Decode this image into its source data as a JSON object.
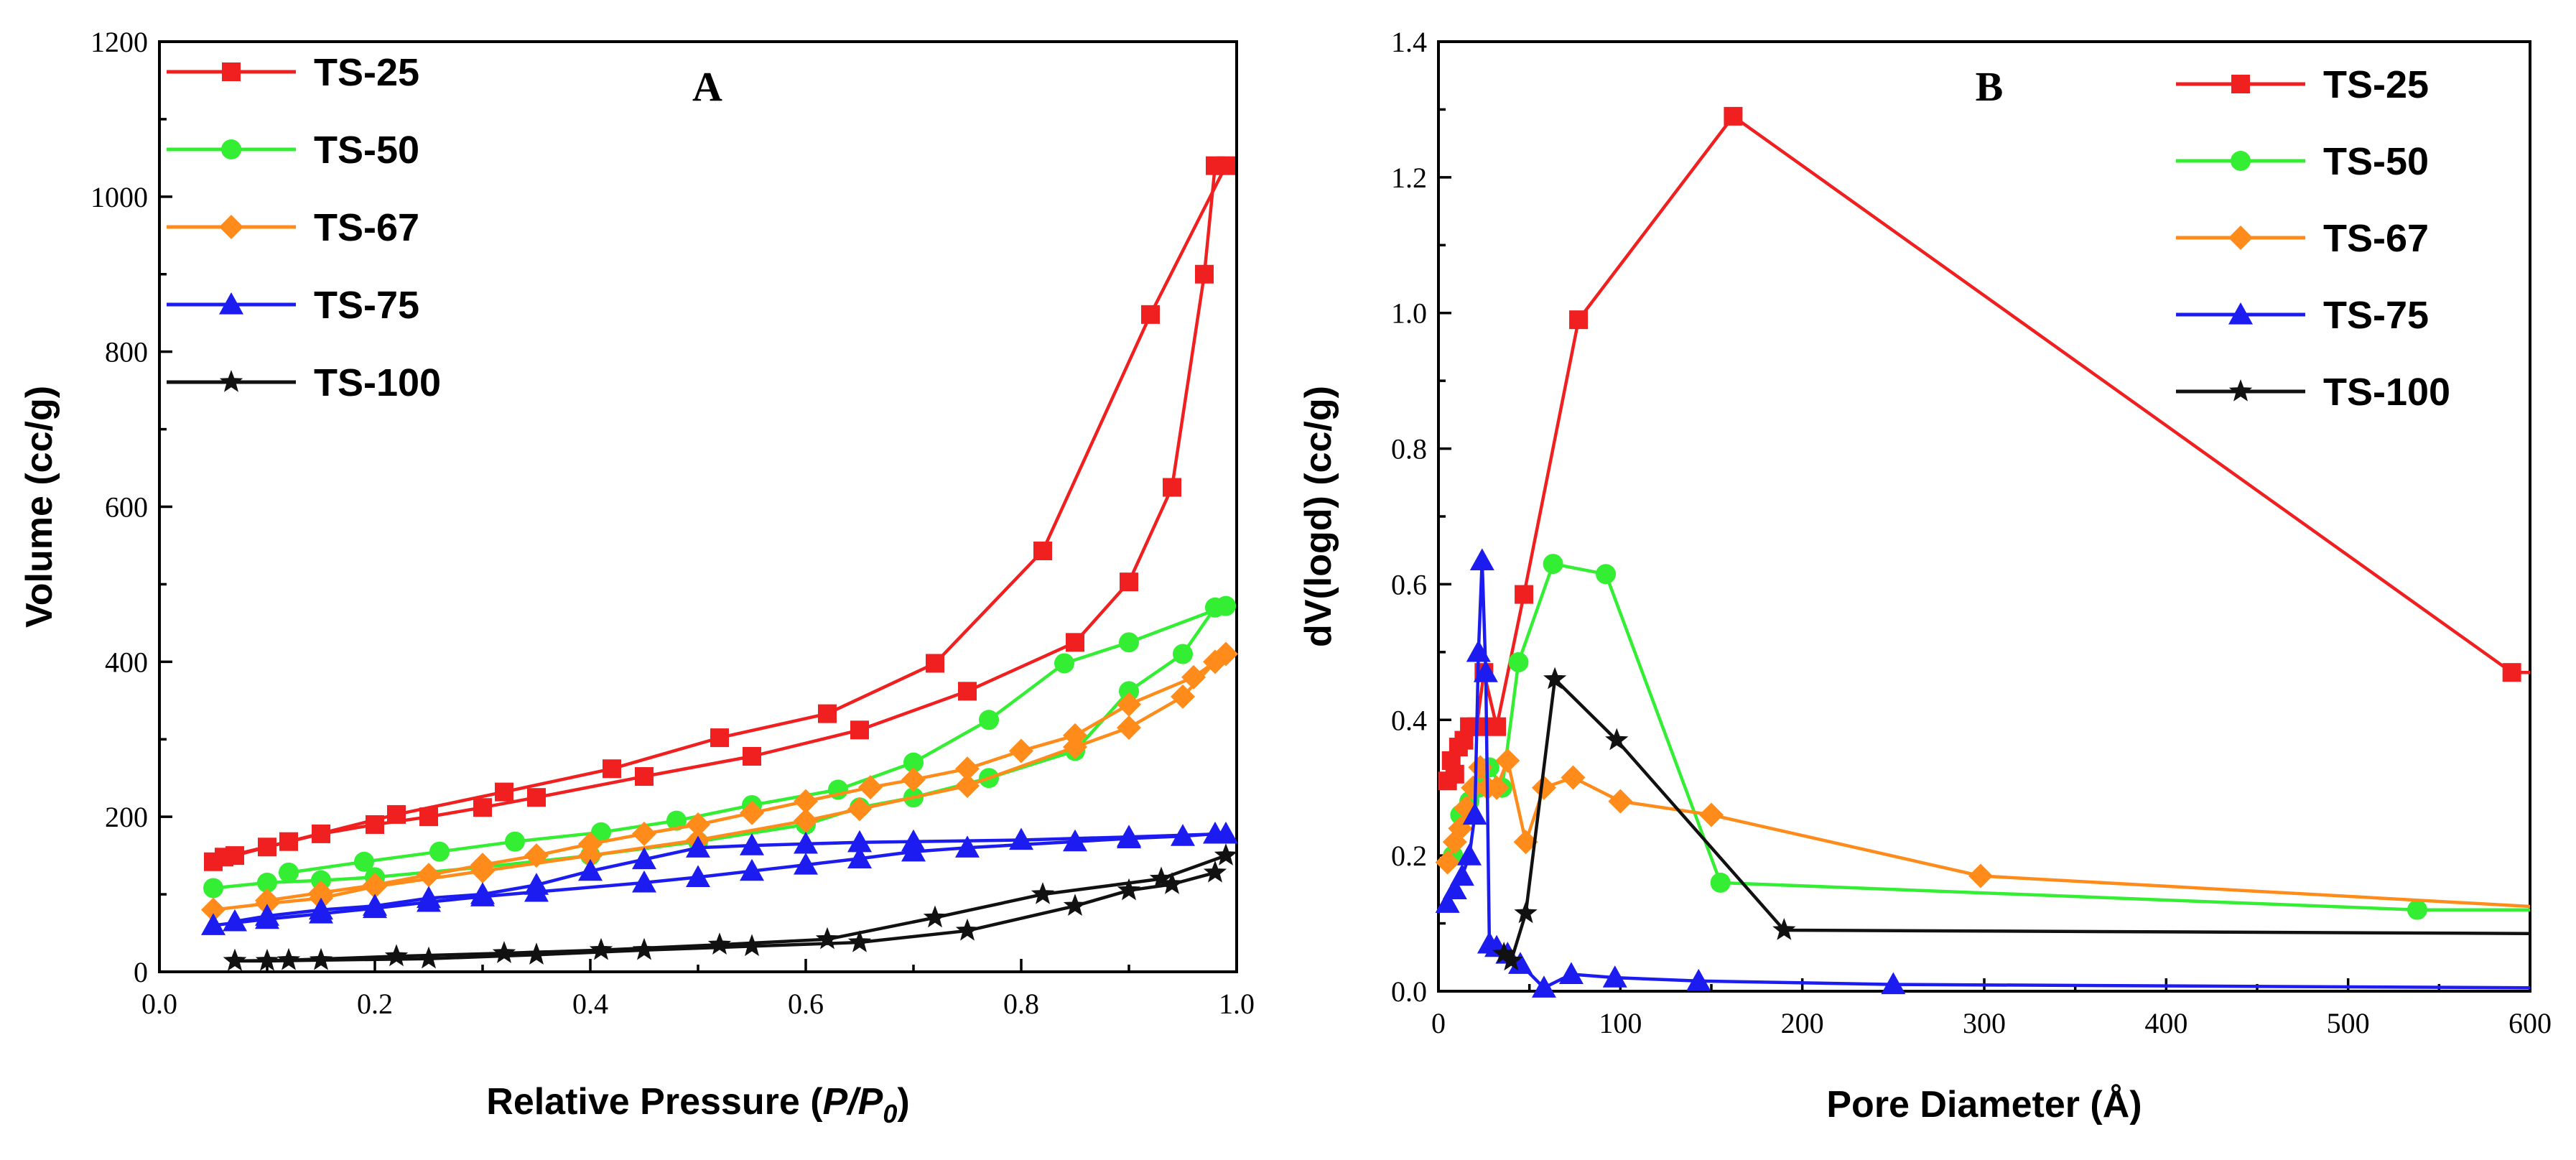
{
  "chart_data": [
    {
      "type": "line",
      "panel_label": "A",
      "xlabel_main": "Relative Pressure (",
      "xlabel_ital": "P/P",
      "xlabel_sub": "0",
      "xlabel_end": ")",
      "ylabel": "Volume (cc/g)",
      "xlim": [
        0.0,
        1.0
      ],
      "ylim": [
        0,
        1200
      ],
      "xticks": [
        0.0,
        0.2,
        0.4,
        0.6,
        0.8,
        1.0
      ],
      "xtick_labels": [
        "0.0",
        "0.2",
        "0.4",
        "0.6",
        "0.8",
        "1.0"
      ],
      "yticks": [
        0,
        200,
        400,
        600,
        800,
        1000,
        1200
      ],
      "ytick_labels": [
        "0",
        "200",
        "400",
        "600",
        "800",
        "1000",
        "1200"
      ],
      "legend_position": "top-left",
      "series": [
        {
          "name": "TS-25",
          "color": "#f02020",
          "marker": "square",
          "adsorption": [
            [
              0.05,
              142
            ],
            [
              0.07,
              150
            ],
            [
              0.1,
              161
            ],
            [
              0.15,
              178
            ],
            [
              0.2,
              190
            ],
            [
              0.25,
              200
            ],
            [
              0.3,
              212
            ],
            [
              0.35,
              225
            ],
            [
              0.45,
              252
            ],
            [
              0.55,
              278
            ],
            [
              0.65,
              312
            ],
            [
              0.75,
              362
            ],
            [
              0.85,
              425
            ],
            [
              0.9,
              503
            ],
            [
              0.94,
              625
            ],
            [
              0.97,
              900
            ],
            [
              0.98,
              1040
            ]
          ],
          "desorption": [
            [
              0.99,
              1040
            ],
            [
              0.92,
              848
            ],
            [
              0.82,
              543
            ],
            [
              0.72,
              398
            ],
            [
              0.62,
              333
            ],
            [
              0.52,
              302
            ],
            [
              0.42,
              262
            ],
            [
              0.32,
              232
            ],
            [
              0.22,
              203
            ],
            [
              0.12,
              168
            ],
            [
              0.06,
              148
            ]
          ]
        },
        {
          "name": "TS-50",
          "color": "#33ee33",
          "marker": "circle",
          "adsorption": [
            [
              0.05,
              108
            ],
            [
              0.1,
              115
            ],
            [
              0.15,
              118
            ],
            [
              0.2,
              122
            ],
            [
              0.3,
              135
            ],
            [
              0.4,
              150
            ],
            [
              0.5,
              168
            ],
            [
              0.6,
              190
            ],
            [
              0.65,
              212
            ],
            [
              0.7,
              225
            ],
            [
              0.77,
              250
            ],
            [
              0.85,
              285
            ],
            [
              0.9,
              362
            ],
            [
              0.95,
              410
            ],
            [
              0.98,
              470
            ]
          ],
          "desorption": [
            [
              0.99,
              472
            ],
            [
              0.9,
              425
            ],
            [
              0.84,
              398
            ],
            [
              0.77,
              325
            ],
            [
              0.7,
              270
            ],
            [
              0.63,
              235
            ],
            [
              0.55,
              215
            ],
            [
              0.48,
              195
            ],
            [
              0.41,
              180
            ],
            [
              0.33,
              168
            ],
            [
              0.26,
              155
            ],
            [
              0.19,
              142
            ],
            [
              0.12,
              128
            ]
          ]
        },
        {
          "name": "TS-67",
          "color": "#ff8c1a",
          "marker": "diamond",
          "adsorption": [
            [
              0.05,
              80
            ],
            [
              0.1,
              88
            ],
            [
              0.15,
              95
            ],
            [
              0.2,
              110
            ],
            [
              0.3,
              130
            ],
            [
              0.4,
              150
            ],
            [
              0.5,
              170
            ],
            [
              0.6,
              195
            ],
            [
              0.65,
              210
            ],
            [
              0.75,
              240
            ],
            [
              0.85,
              290
            ],
            [
              0.9,
              315
            ],
            [
              0.95,
              355
            ],
            [
              0.98,
              400
            ]
          ],
          "desorption": [
            [
              0.99,
              410
            ],
            [
              0.96,
              380
            ],
            [
              0.9,
              345
            ],
            [
              0.85,
              305
            ],
            [
              0.8,
              285
            ],
            [
              0.75,
              262
            ],
            [
              0.7,
              248
            ],
            [
              0.66,
              238
            ],
            [
              0.6,
              220
            ],
            [
              0.55,
              205
            ],
            [
              0.5,
              190
            ],
            [
              0.45,
              178
            ],
            [
              0.4,
              165
            ],
            [
              0.35,
              150
            ],
            [
              0.3,
              138
            ],
            [
              0.25,
              125
            ],
            [
              0.2,
              112
            ],
            [
              0.15,
              102
            ],
            [
              0.1,
              92
            ]
          ]
        },
        {
          "name": "TS-75",
          "color": "#1c1cf0",
          "marker": "triangle",
          "adsorption": [
            [
              0.05,
              60
            ],
            [
              0.1,
              68
            ],
            [
              0.15,
              75
            ],
            [
              0.2,
              82
            ],
            [
              0.25,
              90
            ],
            [
              0.3,
              97
            ],
            [
              0.35,
              103
            ],
            [
              0.45,
              115
            ],
            [
              0.5,
              122
            ],
            [
              0.55,
              130
            ],
            [
              0.6,
              138
            ],
            [
              0.65,
              146
            ],
            [
              0.7,
              155
            ],
            [
              0.75,
              160
            ],
            [
              0.85,
              168
            ],
            [
              0.9,
              172
            ],
            [
              0.95,
              175
            ],
            [
              0.98,
              178
            ]
          ],
          "desorption": [
            [
              0.99,
              178
            ],
            [
              0.9,
              174
            ],
            [
              0.8,
              170
            ],
            [
              0.7,
              168
            ],
            [
              0.65,
              167
            ],
            [
              0.6,
              165
            ],
            [
              0.55,
              163
            ],
            [
              0.5,
              160
            ],
            [
              0.45,
              145
            ],
            [
              0.4,
              130
            ],
            [
              0.35,
              112
            ],
            [
              0.3,
              100
            ],
            [
              0.25,
              95
            ],
            [
              0.2,
              85
            ],
            [
              0.15,
              80
            ],
            [
              0.1,
              72
            ],
            [
              0.07,
              65
            ]
          ]
        },
        {
          "name": "TS-100",
          "color": "#111111",
          "marker": "star",
          "adsorption": [
            [
              0.07,
              14
            ],
            [
              0.1,
              14
            ],
            [
              0.15,
              15
            ],
            [
              0.25,
              17
            ],
            [
              0.35,
              22
            ],
            [
              0.45,
              28
            ],
            [
              0.55,
              33
            ],
            [
              0.65,
              38
            ],
            [
              0.75,
              53
            ],
            [
              0.85,
              85
            ],
            [
              0.9,
              105
            ],
            [
              0.94,
              113
            ],
            [
              0.98,
              128
            ]
          ],
          "desorption": [
            [
              0.99,
              150
            ],
            [
              0.93,
              120
            ],
            [
              0.82,
              100
            ],
            [
              0.72,
              70
            ],
            [
              0.62,
              42
            ],
            [
              0.52,
              35
            ],
            [
              0.41,
              28
            ],
            [
              0.32,
              24
            ],
            [
              0.22,
              20
            ],
            [
              0.12,
              15
            ],
            [
              0.07,
              14
            ]
          ]
        }
      ]
    },
    {
      "type": "line",
      "panel_label": "B",
      "xlabel": "Pore Diameter (Å)",
      "ylabel": "dV(logd) (cc/g)",
      "xlim": [
        0,
        600
      ],
      "ylim": [
        0.0,
        1.4
      ],
      "xticks": [
        0,
        100,
        200,
        300,
        400,
        500,
        600
      ],
      "xtick_labels": [
        "0",
        "100",
        "200",
        "300",
        "400",
        "500",
        "600"
      ],
      "yticks": [
        0.0,
        0.2,
        0.4,
        0.6,
        0.8,
        1.0,
        1.2,
        1.4
      ],
      "ytick_labels": [
        "0.0",
        "0.2",
        "0.4",
        "0.6",
        "0.8",
        "1.0",
        "1.2",
        "1.4"
      ],
      "legend_position": "top-right",
      "series": [
        {
          "name": "TS-25",
          "color": "#f02020",
          "marker": "square",
          "points": [
            [
              5,
              0.31
            ],
            [
              7,
              0.34
            ],
            [
              9,
              0.32
            ],
            [
              11,
              0.36
            ],
            [
              14,
              0.37
            ],
            [
              17,
              0.39
            ],
            [
              21,
              0.39
            ],
            [
              25,
              0.47
            ],
            [
              32,
              0.39
            ],
            [
              47,
              0.585
            ],
            [
              77,
              0.99
            ],
            [
              162,
              1.29
            ],
            [
              590,
              0.47
            ],
            [
              600,
              0.47
            ]
          ]
        },
        {
          "name": "TS-50",
          "color": "#33ee33",
          "marker": "circle",
          "points": [
            [
              8,
              0.2
            ],
            [
              12,
              0.26
            ],
            [
              17,
              0.28
            ],
            [
              22,
              0.3
            ],
            [
              28,
              0.33
            ],
            [
              35,
              0.3
            ],
            [
              44,
              0.485
            ],
            [
              63,
              0.63
            ],
            [
              92,
              0.615
            ],
            [
              155,
              0.16
            ],
            [
              538,
              0.12
            ],
            [
              600,
              0.12
            ]
          ]
        },
        {
          "name": "TS-67",
          "color": "#ff8c1a",
          "marker": "diamond",
          "points": [
            [
              5,
              0.19
            ],
            [
              9,
              0.22
            ],
            [
              12,
              0.24
            ],
            [
              15,
              0.27
            ],
            [
              19,
              0.3
            ],
            [
              23,
              0.33
            ],
            [
              27,
              0.3
            ],
            [
              32,
              0.3
            ],
            [
              38,
              0.34
            ],
            [
              48,
              0.22
            ],
            [
              58,
              0.3
            ],
            [
              74,
              0.315
            ],
            [
              100,
              0.28
            ],
            [
              150,
              0.26
            ],
            [
              298,
              0.17
            ],
            [
              600,
              0.125
            ]
          ]
        },
        {
          "name": "TS-75",
          "color": "#1c1cf0",
          "marker": "triangle",
          "points": [
            [
              5,
              0.13
            ],
            [
              9,
              0.15
            ],
            [
              13,
              0.17
            ],
            [
              17,
              0.2
            ],
            [
              20,
              0.26
            ],
            [
              22,
              0.5
            ],
            [
              24,
              0.635
            ],
            [
              26,
              0.47
            ],
            [
              28,
              0.07
            ],
            [
              32,
              0.065
            ],
            [
              38,
              0.055
            ],
            [
              45,
              0.04
            ],
            [
              58,
              0.005
            ],
            [
              73,
              0.025
            ],
            [
              97,
              0.02
            ],
            [
              143,
              0.015
            ],
            [
              250,
              0.01
            ],
            [
              600,
              0.005
            ]
          ]
        },
        {
          "name": "TS-100",
          "color": "#111111",
          "marker": "star",
          "points": [
            [
              36,
              0.055
            ],
            [
              40,
              0.045
            ],
            [
              48,
              0.115
            ],
            [
              64,
              0.46
            ],
            [
              98,
              0.37
            ],
            [
              190,
              0.09
            ],
            [
              600,
              0.085
            ]
          ]
        }
      ]
    }
  ]
}
